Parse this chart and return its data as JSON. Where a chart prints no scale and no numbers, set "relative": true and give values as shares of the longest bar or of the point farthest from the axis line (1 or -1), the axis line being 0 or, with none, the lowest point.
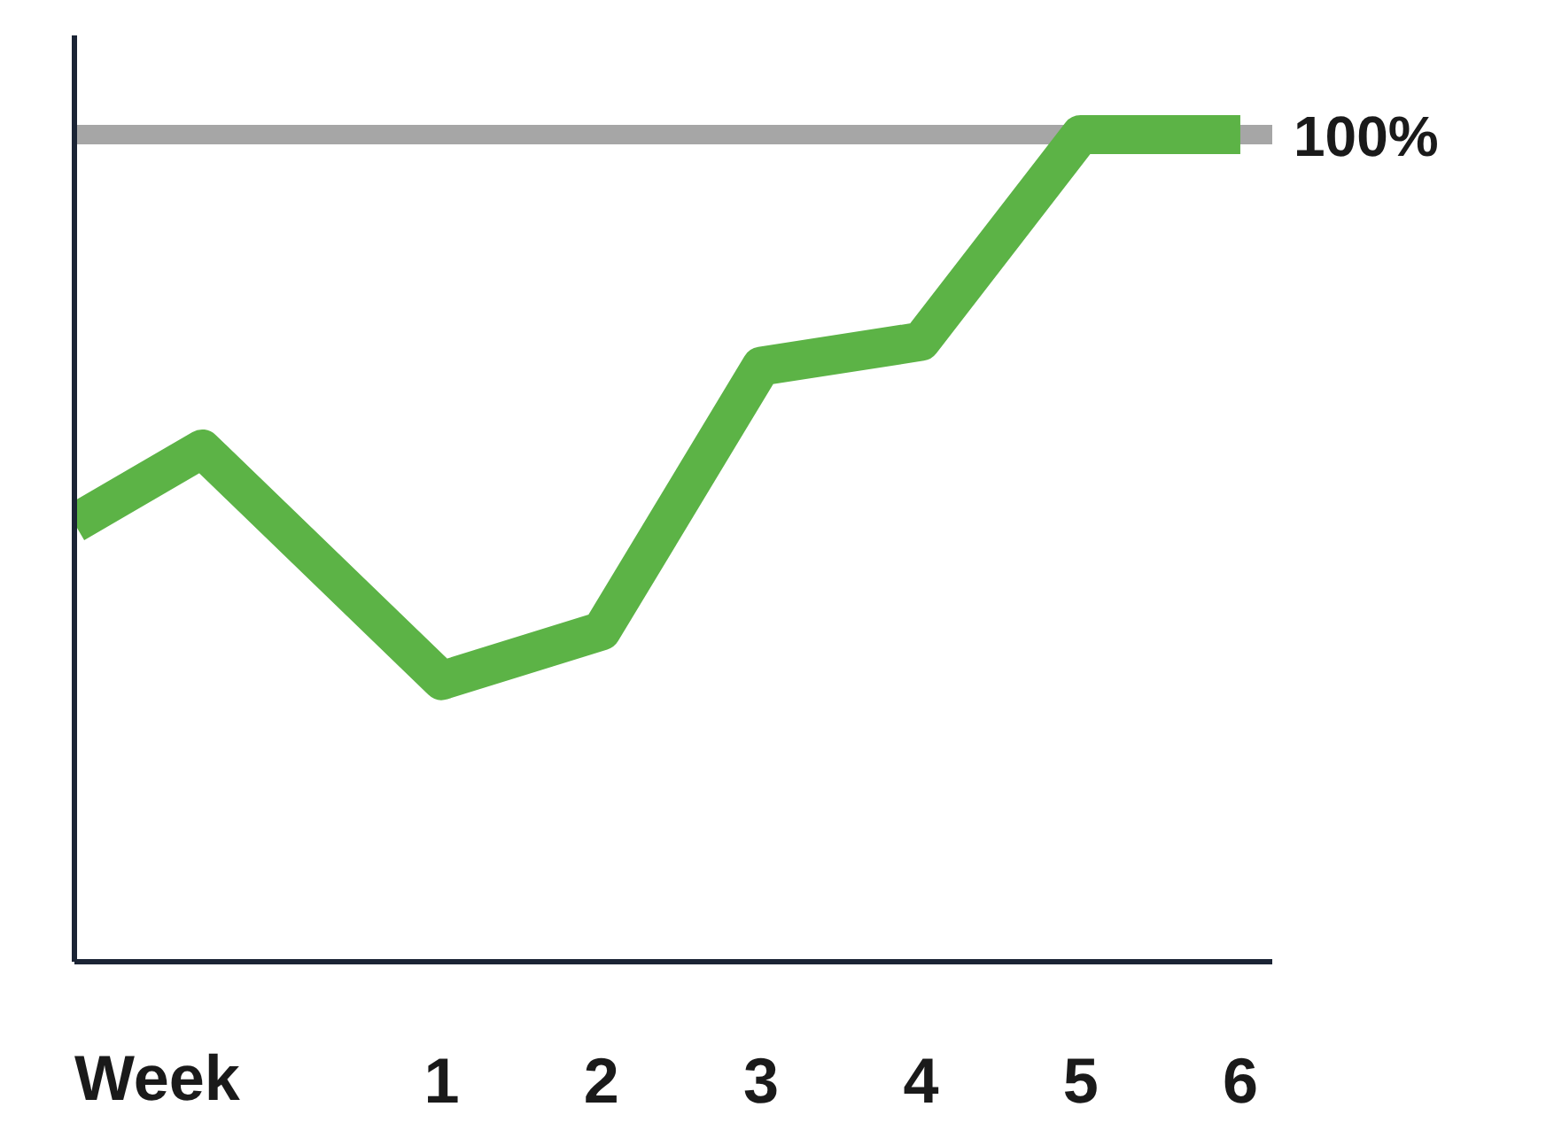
{
  "chart_data": {
    "type": "line",
    "relative": true,
    "xlabel": "Week",
    "x": [
      -1.3,
      -0.5,
      1,
      2,
      3,
      4,
      5,
      6
    ],
    "xlim": [
      -1.3,
      6.2
    ],
    "xticks": [
      1,
      2,
      3,
      4,
      5,
      6
    ],
    "series": [
      {
        "color": "#5cb346",
        "values": [
          0.53,
          0.62,
          0.34,
          0.4,
          0.72,
          0.75,
          1,
          1
        ]
      }
    ],
    "ref_lines": [
      {
        "axis": "y",
        "value": 1,
        "label": "100%",
        "color": "#a6a6a6"
      }
    ],
    "marker": "none",
    "line_style": "solid"
  }
}
